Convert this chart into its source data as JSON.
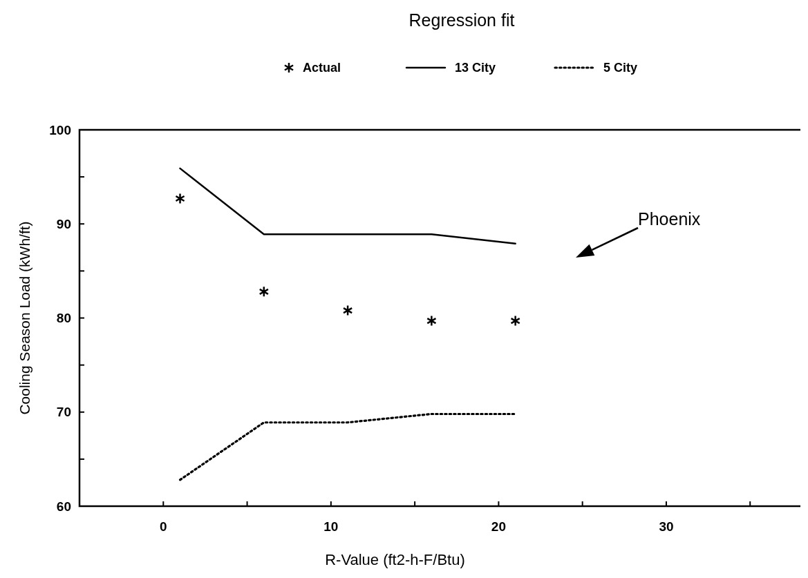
{
  "chart_data": {
    "type": "line",
    "xlabel": "R-Value (ft2-h-F/Btu)",
    "ylabel": "Cooling Season Load (kWh/ft)",
    "legend_title": "Regression fit",
    "legend": "top",
    "x": [
      1,
      6,
      11,
      16,
      21
    ],
    "xlim": [
      -5,
      38
    ],
    "xticks": [
      {
        "value": -5,
        "label": null
      },
      0,
      {
        "value": 5,
        "label": null
      },
      10,
      {
        "value": 15,
        "label": null
      },
      20,
      {
        "value": 25,
        "label": null
      },
      30,
      {
        "value": 35,
        "label": null
      }
    ],
    "ylim": [
      60,
      100
    ],
    "yticks": [
      60,
      {
        "value": 65,
        "label": null
      },
      70,
      {
        "value": 75,
        "label": null
      },
      80,
      {
        "value": 85,
        "label": null
      },
      90,
      {
        "value": 95,
        "label": null
      },
      100
    ],
    "grid": false,
    "series": [
      {
        "name": "Actual",
        "type": "scatter",
        "marker": "cross",
        "color": "#000000",
        "values": [
          92.7,
          82.8,
          80.8,
          79.7,
          79.7
        ]
      },
      {
        "name": "13 City",
        "line_style": "solid",
        "color": "#000000",
        "values": [
          95.9,
          88.9,
          88.9,
          88.9,
          87.9
        ]
      },
      {
        "name": "5 City",
        "line_style": "dotted",
        "color": "#000000",
        "values": [
          62.8,
          68.9,
          68.9,
          69.8,
          69.8
        ]
      }
    ],
    "annotations": [
      "Phoenix"
    ]
  }
}
